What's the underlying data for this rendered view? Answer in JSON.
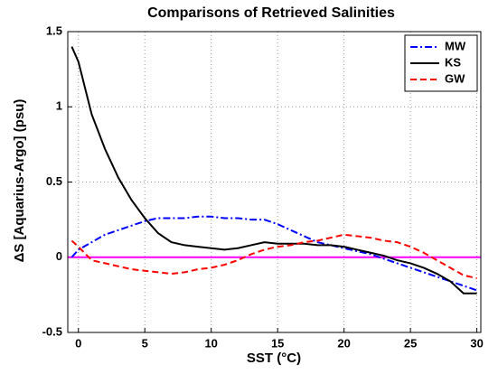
{
  "chart_data": {
    "type": "line",
    "title": "Comparisons of Retrieved Salinities",
    "x_label": "SST (°C)",
    "y_label": "ΔS [Aquarius-Argo] (psu)",
    "x": [
      -0.5,
      0,
      1,
      2,
      3,
      4,
      5,
      6,
      7,
      8,
      9,
      10,
      11,
      12,
      13,
      14,
      15,
      16,
      17,
      18,
      19,
      20,
      21,
      22,
      23,
      24,
      25,
      26,
      27,
      28,
      29,
      30
    ],
    "series": [
      {
        "name": "MW",
        "color": "#0000ff",
        "linestyle": "dashdot",
        "values": [
          0.0,
          0.05,
          0.1,
          0.15,
          0.18,
          0.21,
          0.24,
          0.26,
          0.26,
          0.26,
          0.27,
          0.27,
          0.26,
          0.26,
          0.25,
          0.25,
          0.22,
          0.18,
          0.14,
          0.1,
          0.08,
          0.06,
          0.04,
          0.02,
          -0.01,
          -0.04,
          -0.07,
          -0.1,
          -0.13,
          -0.16,
          -0.19,
          -0.22
        ]
      },
      {
        "name": "KS",
        "color": "#000000",
        "linestyle": "solid",
        "values": [
          1.4,
          1.3,
          0.95,
          0.72,
          0.53,
          0.38,
          0.26,
          0.16,
          0.1,
          0.08,
          0.07,
          0.06,
          0.05,
          0.06,
          0.08,
          0.1,
          0.09,
          0.09,
          0.09,
          0.08,
          0.08,
          0.07,
          0.05,
          0.03,
          0.01,
          -0.02,
          -0.04,
          -0.07,
          -0.11,
          -0.16,
          -0.24,
          -0.24
        ]
      },
      {
        "name": "GW",
        "color": "#ff0000",
        "linestyle": "dashed",
        "values": [
          0.11,
          0.07,
          -0.02,
          -0.04,
          -0.06,
          -0.08,
          -0.09,
          -0.1,
          -0.11,
          -0.1,
          -0.08,
          -0.07,
          -0.05,
          -0.02,
          0.02,
          0.05,
          0.07,
          0.08,
          0.1,
          0.11,
          0.13,
          0.15,
          0.14,
          0.13,
          0.11,
          0.1,
          0.07,
          0.03,
          -0.02,
          -0.07,
          -0.12,
          -0.14
        ]
      }
    ],
    "reference_line": {
      "value": 0,
      "color": "#ff00ff"
    },
    "xlim": [
      -0.8,
      30.3
    ],
    "xticks": [
      0,
      5,
      10,
      15,
      20,
      25,
      30
    ],
    "ylim": [
      -0.5,
      1.5
    ],
    "yticks": [
      -0.5,
      0,
      0.5,
      1,
      1.5
    ],
    "grid": true,
    "legend": "upper right"
  }
}
